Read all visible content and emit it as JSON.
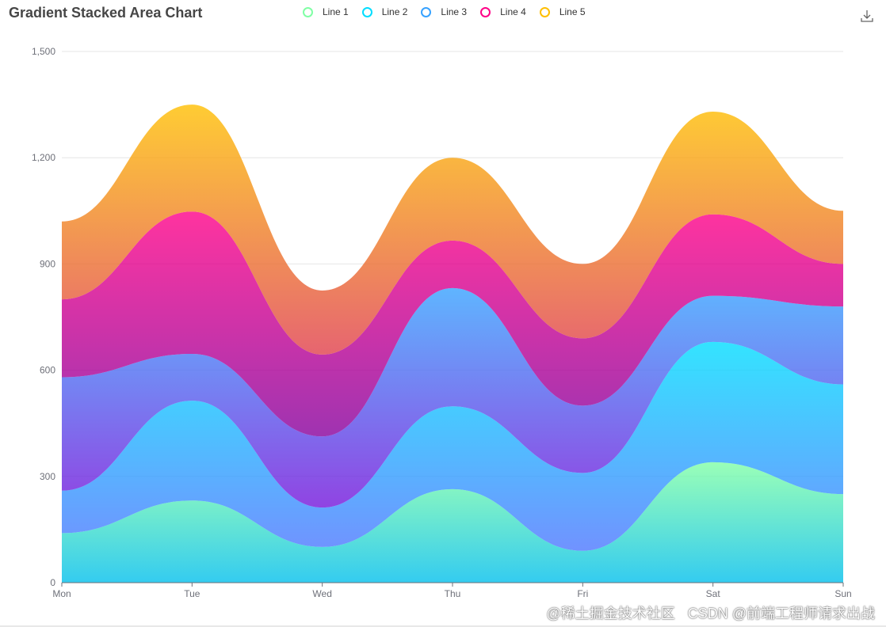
{
  "chart_data": {
    "type": "area",
    "stacked": true,
    "smooth": true,
    "title": "Gradient Stacked Area Chart",
    "categories": [
      "Mon",
      "Tue",
      "Wed",
      "Thu",
      "Fri",
      "Sat",
      "Sun"
    ],
    "ylim": [
      0,
      1500
    ],
    "yticks": [
      0,
      300,
      600,
      900,
      1200,
      1500
    ],
    "ytick_labels": [
      "0",
      "300",
      "600",
      "900",
      "1,200",
      "1,500"
    ],
    "grid": true,
    "legend_position": "top-center",
    "series": [
      {
        "name": "Line 1",
        "values": [
          140,
          232,
          101,
          264,
          90,
          340,
          250
        ],
        "color": "#80FFA5",
        "gradient": [
          "#80FFA5",
          "#01BFEC"
        ]
      },
      {
        "name": "Line 2",
        "values": [
          120,
          282,
          111,
          234,
          220,
          340,
          310
        ],
        "color": "#00DDFF",
        "gradient": [
          "#00DDFF",
          "#4D77FF"
        ]
      },
      {
        "name": "Line 3",
        "values": [
          320,
          132,
          201,
          334,
          190,
          130,
          220
        ],
        "color": "#37A2FF",
        "gradient": [
          "#37A2FF",
          "#7415DB"
        ]
      },
      {
        "name": "Line 4",
        "values": [
          220,
          402,
          231,
          134,
          190,
          230,
          120
        ],
        "color": "#FF0087",
        "gradient": [
          "#FF0087",
          "#87009D"
        ]
      },
      {
        "name": "Line 5",
        "values": [
          220,
          302,
          181,
          234,
          210,
          290,
          150
        ],
        "color": "#FFBF00",
        "gradient": [
          "#FFBF00",
          "#E03E4C"
        ]
      }
    ]
  },
  "toolbox": {
    "icon": "download-icon"
  },
  "watermark": {
    "line1": "@稀土掘金技术社区",
    "line2": "CSDN @前端工程师请求出战"
  }
}
